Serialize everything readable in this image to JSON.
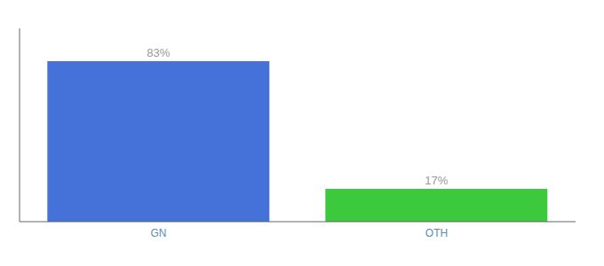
{
  "chart_data": {
    "type": "bar",
    "categories": [
      "GN",
      "OTH"
    ],
    "values": [
      83,
      17
    ],
    "colors": [
      "#4472D9",
      "#3DC93D"
    ],
    "value_labels": [
      "83%",
      "17%"
    ],
    "data_labels": true,
    "ylim": [
      0,
      100
    ],
    "tick_labels": "x"
  }
}
